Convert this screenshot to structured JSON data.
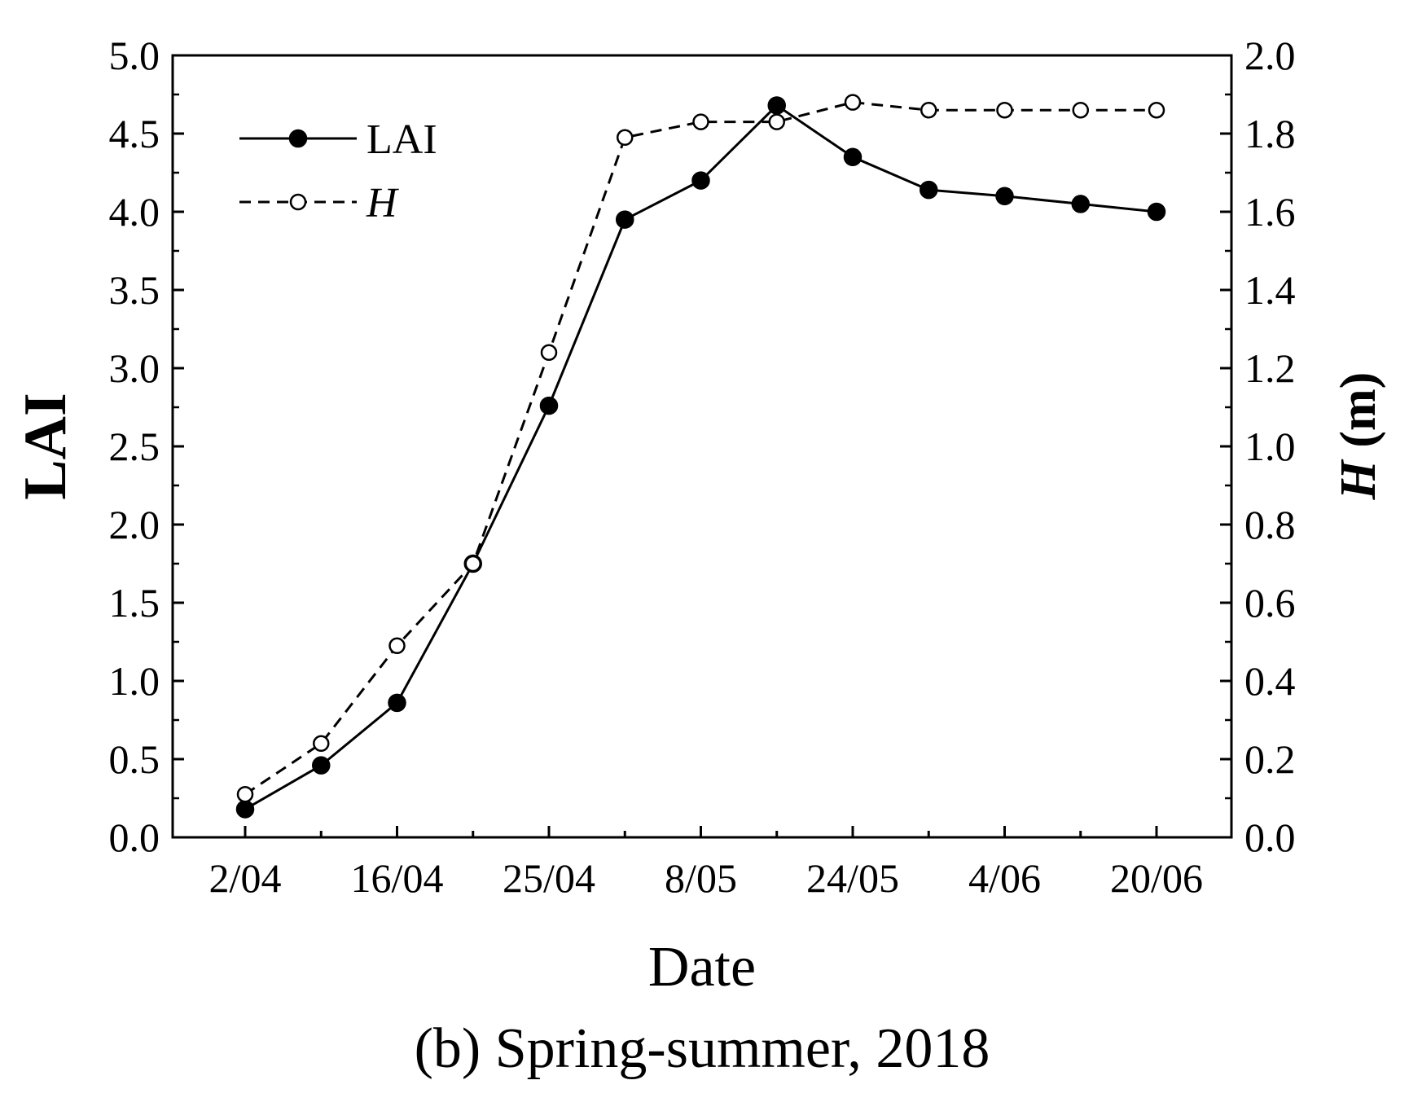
{
  "chart_data": {
    "type": "line",
    "caption": "(b) Spring-summer, 2018",
    "xlabel": "Date",
    "ylabel_left": "LAI",
    "ylabel_right": {
      "italic": "H",
      "rest": " (m)"
    },
    "y_left_range": [
      0,
      5
    ],
    "y_left_ticks": [
      "0.0",
      "0.5",
      "1.0",
      "1.5",
      "2.0",
      "2.5",
      "3.0",
      "3.5",
      "4.0",
      "4.5",
      "5.0"
    ],
    "y_right_range": [
      0,
      2
    ],
    "y_right_ticks": [
      "0.0",
      "0.2",
      "0.4",
      "0.6",
      "0.8",
      "1.0",
      "1.2",
      "1.4",
      "1.6",
      "1.8",
      "2.0"
    ],
    "x_tick_labels": [
      "2/04",
      "",
      "16/04",
      "",
      "25/04",
      "",
      "8/05",
      "",
      "24/05",
      "",
      "4/06",
      "",
      "20/06"
    ],
    "grid": false,
    "legend_position": "top-left",
    "series": [
      {
        "name": "LAI",
        "axis": "left",
        "line": "solid",
        "marker": "filled-circle",
        "values": [
          0.18,
          0.46,
          0.86,
          1.75,
          2.76,
          3.95,
          4.2,
          4.68,
          4.35,
          4.14,
          4.1,
          4.05,
          4.0
        ]
      },
      {
        "name": "H",
        "axis": "right",
        "line": "dashed",
        "marker": "open-circle",
        "values": [
          0.11,
          0.24,
          0.49,
          0.7,
          1.24,
          1.79,
          1.83,
          1.83,
          1.88,
          1.86,
          1.86,
          1.86,
          1.86
        ]
      }
    ]
  }
}
